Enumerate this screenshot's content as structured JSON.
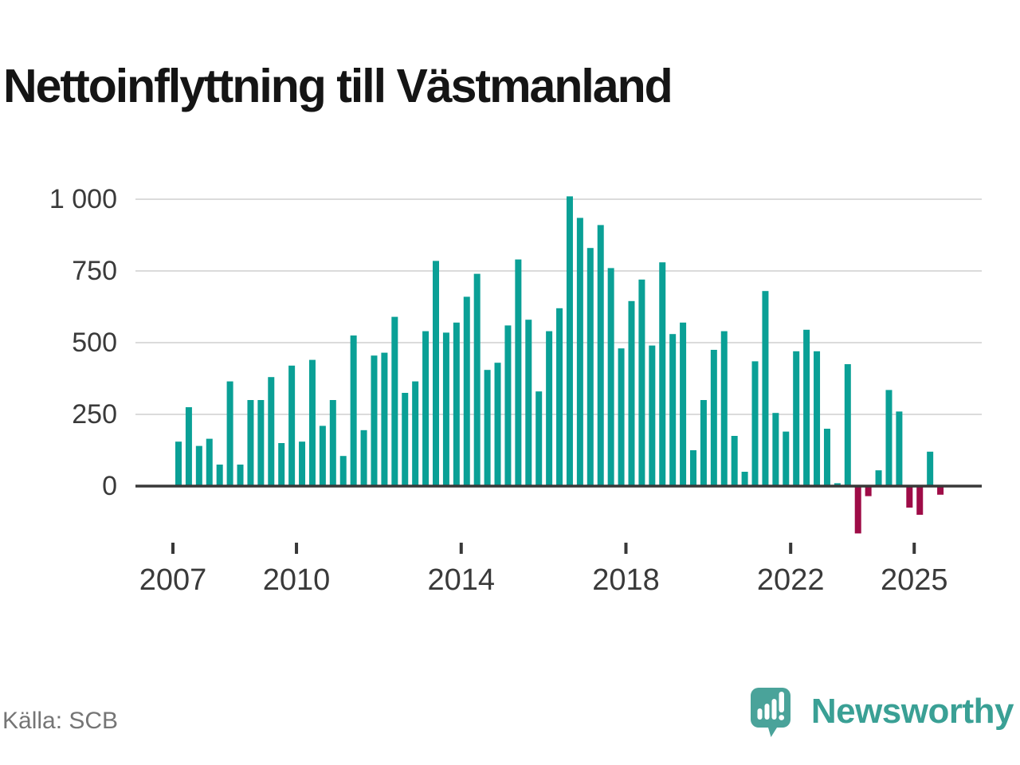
{
  "chart_data": {
    "type": "bar",
    "title": "Nettoinflyttning till Västmanland",
    "source": "Källa: SCB",
    "brand": "Newsworthy",
    "x": [
      "2007 Q1",
      "2007 Q2",
      "2007 Q3",
      "2007 Q4",
      "2008 Q1",
      "2008 Q2",
      "2008 Q3",
      "2008 Q4",
      "2009 Q1",
      "2009 Q2",
      "2009 Q3",
      "2009 Q4",
      "2010 Q1",
      "2010 Q2",
      "2010 Q3",
      "2010 Q4",
      "2011 Q1",
      "2011 Q2",
      "2011 Q3",
      "2011 Q4",
      "2012 Q1",
      "2012 Q2",
      "2012 Q3",
      "2012 Q4",
      "2013 Q1",
      "2013 Q2",
      "2013 Q3",
      "2013 Q4",
      "2014 Q1",
      "2014 Q2",
      "2014 Q3",
      "2014 Q4",
      "2015 Q1",
      "2015 Q2",
      "2015 Q3",
      "2015 Q4",
      "2016 Q1",
      "2016 Q2",
      "2016 Q3",
      "2016 Q4",
      "2017 Q1",
      "2017 Q2",
      "2017 Q3",
      "2017 Q4",
      "2018 Q1",
      "2018 Q2",
      "2018 Q3",
      "2018 Q4",
      "2019 Q1",
      "2019 Q2",
      "2019 Q3",
      "2019 Q4",
      "2020 Q1",
      "2020 Q2",
      "2020 Q3",
      "2020 Q4",
      "2021 Q1",
      "2021 Q2",
      "2021 Q3",
      "2021 Q4",
      "2022 Q1",
      "2022 Q2",
      "2022 Q3",
      "2022 Q4",
      "2023 Q1",
      "2023 Q2",
      "2023 Q3",
      "2023 Q4",
      "2024 Q1",
      "2024 Q2",
      "2024 Q3",
      "2024 Q4",
      "2025 Q1",
      "2025 Q2",
      "2025 Q3"
    ],
    "values": [
      155,
      275,
      140,
      165,
      75,
      365,
      75,
      300,
      300,
      380,
      150,
      420,
      155,
      440,
      210,
      300,
      105,
      525,
      195,
      455,
      465,
      590,
      325,
      365,
      540,
      785,
      535,
      570,
      660,
      740,
      405,
      430,
      560,
      790,
      580,
      330,
      540,
      620,
      1010,
      935,
      830,
      910,
      760,
      480,
      645,
      720,
      490,
      780,
      530,
      570,
      125,
      300,
      475,
      540,
      175,
      50,
      435,
      680,
      255,
      190,
      470,
      545,
      470,
      200,
      10,
      425,
      -165,
      -35,
      55,
      335,
      260,
      -75,
      -100,
      120,
      -30
    ],
    "yticks": [
      {
        "value": 0,
        "label": "0"
      },
      {
        "value": 250,
        "label": "250"
      },
      {
        "value": 500,
        "label": "500"
      },
      {
        "value": 750,
        "label": "750"
      },
      {
        "value": 1000,
        "label": "1 000"
      }
    ],
    "xticks": [
      {
        "year": 2007,
        "label": "2007"
      },
      {
        "year": 2010,
        "label": "2010"
      },
      {
        "year": 2014,
        "label": "2014"
      },
      {
        "year": 2018,
        "label": "2018"
      },
      {
        "year": 2022,
        "label": "2022"
      },
      {
        "year": 2025,
        "label": "2025"
      }
    ],
    "ylim": [
      -180,
      1060
    ],
    "grid": true,
    "legend": false,
    "colors": {
      "positive": "#0aa096",
      "negative": "#9e0c47",
      "gridline": "#dbdbdb",
      "zero_line": "#383838",
      "axis_text": "#3a3a3a",
      "title_text": "#151515",
      "source_text": "#757575",
      "brand_teal": "#3aa095",
      "logo_bubble": "#4aa39a"
    }
  }
}
